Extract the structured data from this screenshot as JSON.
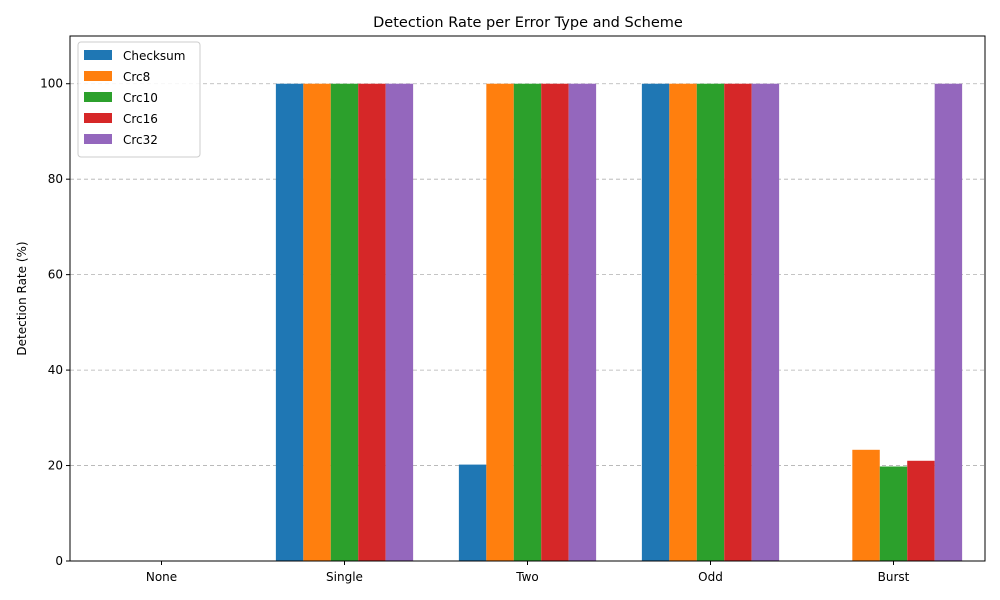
{
  "chart_data": {
    "type": "bar",
    "title": "Detection Rate per Error Type and Scheme",
    "xlabel": "",
    "ylabel": "Detection Rate (%)",
    "ylim": [
      0,
      110
    ],
    "yticks": [
      0,
      20,
      40,
      60,
      80,
      100
    ],
    "grid": "y-dashed",
    "legend_position": "top-left",
    "categories": [
      "None",
      "Single",
      "Two",
      "Odd",
      "Burst"
    ],
    "series": [
      {
        "name": "Checksum",
        "color": "#1f77b4",
        "values": [
          0,
          100,
          20.2,
          100,
          0
        ]
      },
      {
        "name": "Crc8",
        "color": "#ff7f0e",
        "values": [
          0,
          100,
          100,
          100,
          23.3
        ]
      },
      {
        "name": "Crc10",
        "color": "#2ca02c",
        "values": [
          0,
          100,
          100,
          100,
          19.8
        ]
      },
      {
        "name": "Crc16",
        "color": "#d62728",
        "values": [
          0,
          100,
          100,
          100,
          21.0
        ]
      },
      {
        "name": "Crc32",
        "color": "#9467bd",
        "values": [
          0,
          100,
          100,
          100,
          100
        ]
      }
    ]
  }
}
